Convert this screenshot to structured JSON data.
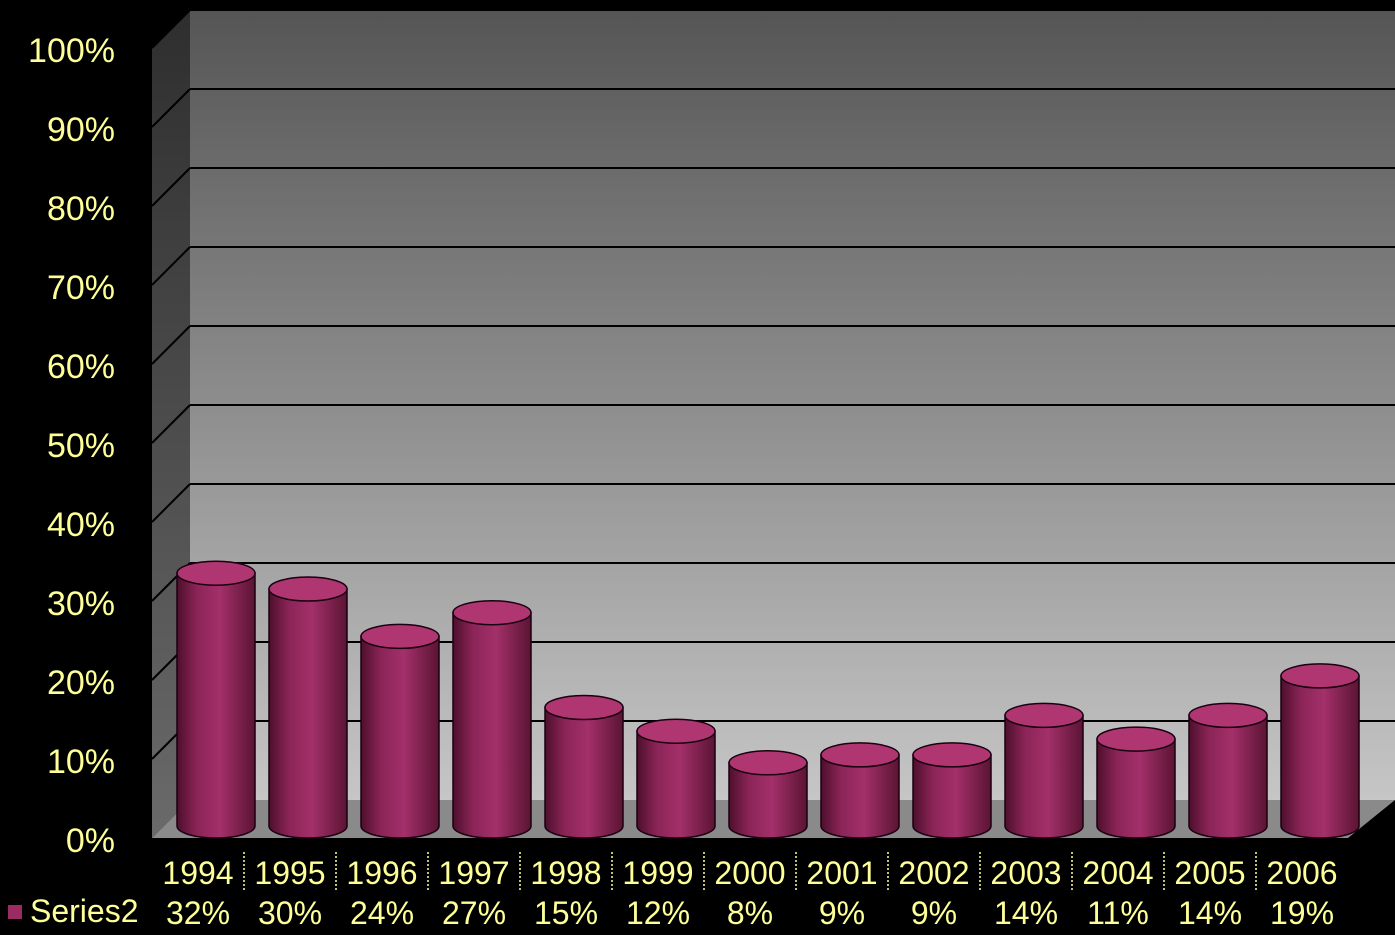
{
  "chart_data": {
    "type": "bar",
    "style": "3d-cylinder",
    "categories": [
      "1994",
      "1995",
      "1996",
      "1997",
      "1998",
      "1999",
      "2000",
      "2001",
      "2002",
      "2003",
      "2004",
      "2005",
      "2006"
    ],
    "series": [
      {
        "name": "Series2",
        "values": [
          32,
          30,
          24,
          27,
          15,
          12,
          8,
          9,
          9,
          14,
          11,
          14,
          19
        ],
        "labels": [
          "32%",
          "30%",
          "24%",
          "27%",
          "15%",
          "12%",
          "8%",
          "9%",
          "9%",
          "14%",
          "11%",
          "14%",
          "19%"
        ]
      }
    ],
    "y_ticks": [
      "0%",
      "10%",
      "20%",
      "30%",
      "40%",
      "50%",
      "60%",
      "70%",
      "80%",
      "90%",
      "100%"
    ],
    "ylim": [
      0,
      100
    ],
    "grid": true,
    "legend": "data-table-left",
    "data_table": true,
    "colors": {
      "bar": "#9b2c62",
      "bar_dark": "#4d0f2c",
      "bar_top": "#b03672",
      "text": "#ffff99",
      "background": "#000000",
      "wall_top": "#5a5a5a",
      "wall_bottom": "#c4c4c4",
      "floor": "#8a8a8a",
      "side_wall": "#3a3a3a"
    }
  }
}
